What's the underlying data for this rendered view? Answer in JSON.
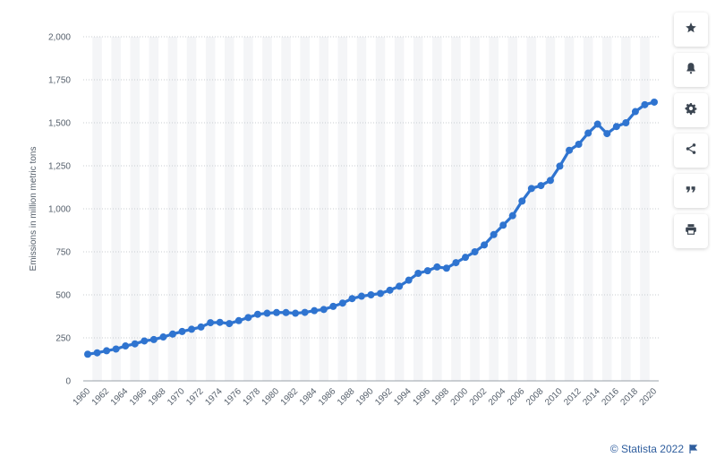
{
  "chart_data": {
    "type": "line",
    "title": "",
    "xlabel": "",
    "ylabel": "Emissions in million metric tons",
    "ylim": [
      0,
      2000
    ],
    "y_ticks": [
      0,
      250,
      500,
      750,
      1000,
      1250,
      1500,
      1750,
      2000
    ],
    "y_tick_labels": [
      "0",
      "250",
      "500",
      "750",
      "1,000",
      "1,250",
      "1,500",
      "1,750",
      "2,000"
    ],
    "x_tick_labels": [
      "1960",
      "1962",
      "1964",
      "1966",
      "1968",
      "1970",
      "1972",
      "1974",
      "1976",
      "1978",
      "1980",
      "1982",
      "1984",
      "1986",
      "1988",
      "1990",
      "1992",
      "1994",
      "1996",
      "1998",
      "2000",
      "2002",
      "2004",
      "2006",
      "2008",
      "2010",
      "2012",
      "2014",
      "2016",
      "2018",
      "2020"
    ],
    "grid": true,
    "line_color": "#2f74d0",
    "x": [
      1960,
      1961,
      1962,
      1963,
      1964,
      1965,
      1966,
      1967,
      1968,
      1969,
      1970,
      1971,
      1972,
      1973,
      1974,
      1975,
      1976,
      1977,
      1978,
      1979,
      1980,
      1981,
      1982,
      1983,
      1984,
      1985,
      1986,
      1987,
      1988,
      1989,
      1990,
      1991,
      1992,
      1993,
      1994,
      1995,
      1996,
      1997,
      1998,
      1999,
      2000,
      2001,
      2002,
      2003,
      2004,
      2005,
      2006,
      2007,
      2008,
      2009,
      2010,
      2011,
      2012,
      2013,
      2014,
      2015,
      2016,
      2017,
      2018,
      2019,
      2020
    ],
    "values": [
      155,
      163,
      175,
      185,
      203,
      215,
      232,
      240,
      255,
      272,
      287,
      300,
      313,
      338,
      340,
      333,
      350,
      368,
      387,
      393,
      397,
      397,
      393,
      398,
      408,
      415,
      433,
      452,
      478,
      492,
      500,
      508,
      527,
      550,
      585,
      625,
      640,
      662,
      655,
      687,
      718,
      750,
      790,
      850,
      905,
      960,
      1045,
      1118,
      1135,
      1165,
      1248,
      1340,
      1375,
      1440,
      1492,
      1437,
      1478,
      1500,
      1565,
      1605,
      1620
    ]
  },
  "toolbar": {
    "buttons": [
      {
        "name": "favorite-button",
        "icon": "star-icon"
      },
      {
        "name": "notification-button",
        "icon": "bell-icon"
      },
      {
        "name": "settings-button",
        "icon": "gear-icon"
      },
      {
        "name": "share-button",
        "icon": "share-icon"
      },
      {
        "name": "cite-button",
        "icon": "quote-icon"
      },
      {
        "name": "print-button",
        "icon": "print-icon"
      }
    ],
    "icon_color": "#3c4652"
  },
  "credit": {
    "text": "© Statista 2022",
    "color": "#2f5e9e"
  }
}
